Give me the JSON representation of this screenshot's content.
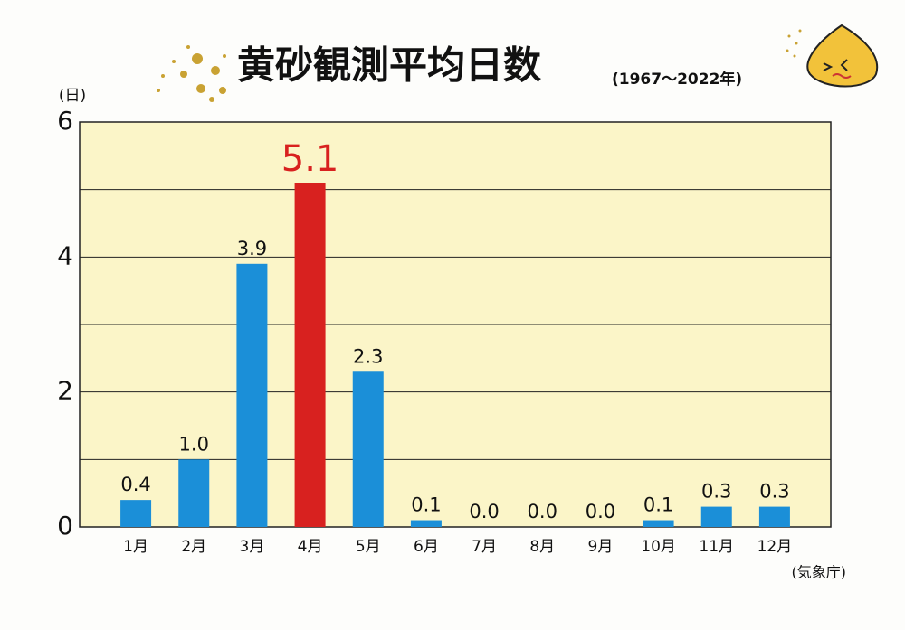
{
  "chart_data": {
    "type": "bar",
    "title": "黄砂観測平均日数",
    "subtitle": "(1967〜2022年)",
    "y_label": "(日)",
    "source": "(気象庁)",
    "categories": [
      "1月",
      "2月",
      "3月",
      "4月",
      "5月",
      "6月",
      "7月",
      "8月",
      "9月",
      "10月",
      "11月",
      "12月"
    ],
    "values": [
      0.4,
      1.0,
      3.9,
      5.1,
      2.3,
      0.1,
      0.0,
      0.0,
      0.0,
      0.1,
      0.3,
      0.3
    ],
    "value_labels": [
      "0.4",
      "1.0",
      "3.9",
      "5.1",
      "2.3",
      "0.1",
      "0.0",
      "0.0",
      "0.0",
      "0.1",
      "0.3",
      "0.3"
    ],
    "colors": [
      "#1b8fd8",
      "#1b8fd8",
      "#1b8fd8",
      "#d8211f",
      "#1b8fd8",
      "#1b8fd8",
      "#1b8fd8",
      "#1b8fd8",
      "#1b8fd8",
      "#1b8fd8",
      "#1b8fd8",
      "#1b8fd8"
    ],
    "highlight_index": 3,
    "ylim": [
      0,
      6
    ],
    "yticks": [
      0,
      2,
      4,
      6
    ],
    "minor_yticks": [
      1,
      3,
      5
    ],
    "grid": true
  }
}
